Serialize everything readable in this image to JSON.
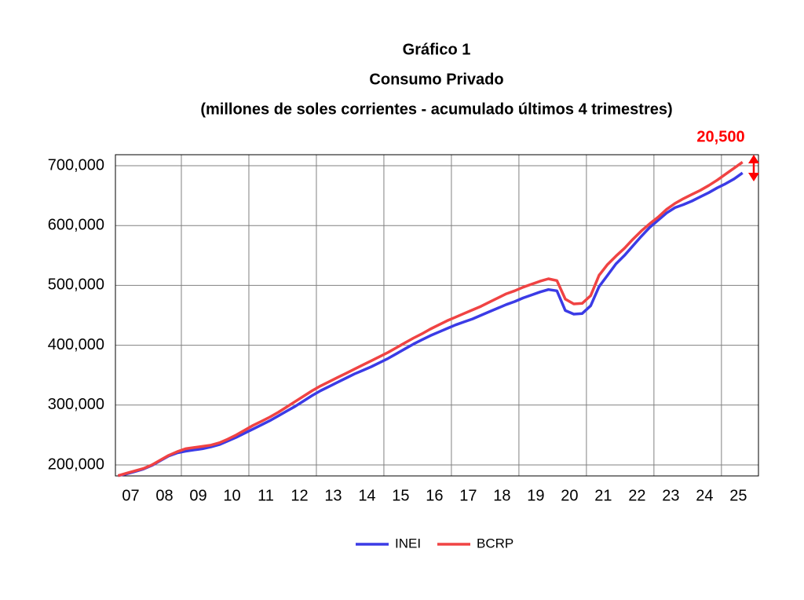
{
  "chart_data": {
    "type": "line",
    "title": "Gráfico 1",
    "subtitle": "Consumo Privado",
    "subtitle2": "(millones de soles corrientes - acumulado últimos 4 trimestres)",
    "annotation": "20,500",
    "categories": [
      "07",
      null,
      null,
      null,
      "08",
      null,
      null,
      null,
      "09",
      null,
      null,
      null,
      "10",
      null,
      null,
      null,
      "11",
      null,
      null,
      null,
      "12",
      null,
      null,
      null,
      "13",
      null,
      null,
      null,
      "14",
      null,
      null,
      null,
      "15",
      null,
      null,
      null,
      "16",
      null,
      null,
      null,
      "17",
      null,
      null,
      null,
      "18",
      null,
      null,
      null,
      "19",
      null,
      null,
      null,
      "20",
      null,
      null,
      null,
      "21",
      null,
      null,
      null,
      "22",
      null,
      null,
      null,
      "23",
      null,
      null,
      null,
      "24",
      null,
      null,
      null,
      "25",
      null,
      null
    ],
    "series": [
      {
        "name": "INEI",
        "color": "#3b3be6",
        "values": [
          182000,
          185000,
          189000,
          193000,
          199000,
          207000,
          215000,
          220000,
          223000,
          225000,
          227000,
          230000,
          234000,
          240000,
          246000,
          253000,
          260000,
          267000,
          274000,
          282000,
          290000,
          298000,
          307000,
          316000,
          324000,
          331000,
          338000,
          345000,
          352000,
          358000,
          364000,
          371000,
          378000,
          386000,
          394000,
          402000,
          409000,
          416000,
          422000,
          428000,
          434000,
          439000,
          444000,
          450000,
          456000,
          462000,
          468000,
          473000,
          479000,
          484000,
          489000,
          493000,
          491000,
          458000,
          452000,
          453000,
          466000,
          498000,
          517000,
          536000,
          550000,
          566000,
          582000,
          597000,
          609000,
          621000,
          630000,
          635000,
          641000,
          648000,
          655000,
          663000,
          670000,
          678000,
          688000
        ]
      },
      {
        "name": "BCRP",
        "color": "#f04343",
        "values": [
          182000,
          186000,
          190000,
          194000,
          200000,
          208000,
          216000,
          222000,
          227000,
          229000,
          231000,
          233000,
          237000,
          243000,
          250000,
          258000,
          266000,
          273000,
          280000,
          288000,
          297000,
          306000,
          315000,
          324000,
          332000,
          339000,
          346000,
          353000,
          360000,
          367000,
          374000,
          381000,
          388000,
          396000,
          404000,
          412000,
          419000,
          427000,
          434000,
          441000,
          447000,
          453000,
          459000,
          465000,
          472000,
          479000,
          486000,
          491000,
          497000,
          502000,
          507000,
          511000,
          508000,
          477000,
          469000,
          470000,
          483000,
          517000,
          535000,
          549000,
          562000,
          577000,
          591000,
          603000,
          614000,
          627000,
          637000,
          645000,
          652000,
          659000,
          667000,
          676000,
          686000,
          696000,
          706000
        ]
      }
    ],
    "ylim": [
      181600,
      718400
    ],
    "yticks": [
      {
        "value": 200000,
        "label": "200,000"
      },
      {
        "value": 300000,
        "label": "300,000"
      },
      {
        "value": 400000,
        "label": "400,000"
      },
      {
        "value": 500000,
        "label": "500,000"
      },
      {
        "value": 600000,
        "label": "600,000"
      },
      {
        "value": 700000,
        "label": "700,000"
      }
    ],
    "grid": true
  }
}
